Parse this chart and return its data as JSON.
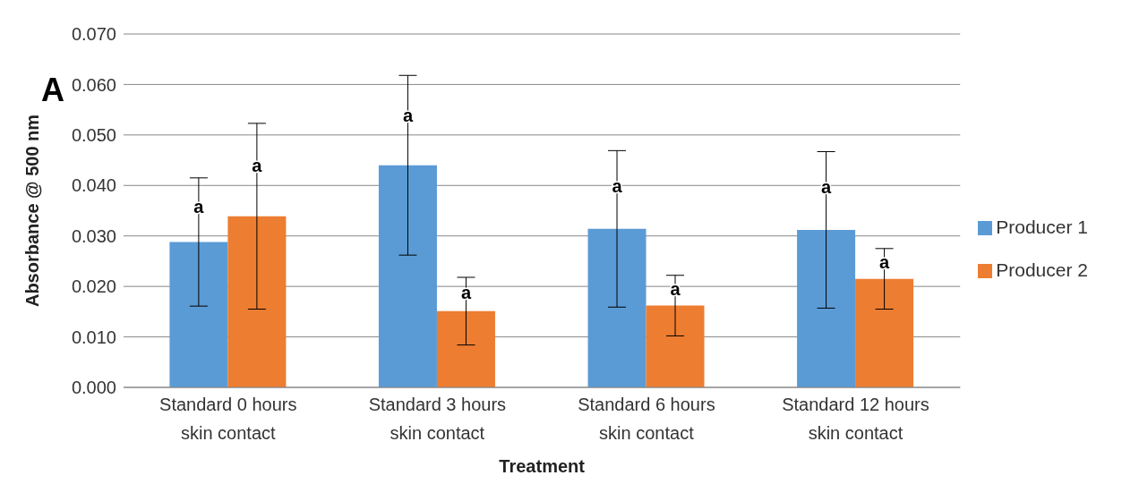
{
  "chart_data": {
    "type": "bar",
    "xlabel": "Treatment",
    "ylabel": "Absorbance @ 500 nm",
    "categories": [
      "Standard 0 hours skin contact",
      "Standard 3 hours skin contact",
      "Standard 6 hours skin contact",
      "Standard 12 hours skin contact"
    ],
    "series": [
      {
        "name": "Producer 1",
        "color": "#5b9bd5",
        "values": [
          0.0288,
          0.044,
          0.0314,
          0.0312
        ],
        "errors": [
          0.0127,
          0.0178,
          0.0155,
          0.0155
        ]
      },
      {
        "name": "Producer 2",
        "color": "#ed7d31",
        "values": [
          0.0339,
          0.0151,
          0.0162,
          0.0215
        ],
        "errors": [
          0.0184,
          0.0067,
          0.006,
          0.006
        ]
      }
    ],
    "ylim": [
      0,
      0.07
    ],
    "yticks": [
      {
        "value": 0,
        "label": "0.000"
      },
      {
        "value": 0.01,
        "label": "0.010"
      },
      {
        "value": 0.02,
        "label": "0.020"
      },
      {
        "value": 0.03,
        "label": "0.030"
      },
      {
        "value": 0.04,
        "label": "0.040"
      },
      {
        "value": 0.05,
        "label": "0.050"
      },
      {
        "value": 0.06,
        "label": "0.060"
      },
      {
        "value": 0.07,
        "label": "0.070"
      }
    ],
    "grid": "y",
    "legend": "right",
    "annotations": [
      "A",
      "a",
      "a",
      "a",
      "a",
      "a",
      "a",
      "a",
      "a"
    ]
  }
}
